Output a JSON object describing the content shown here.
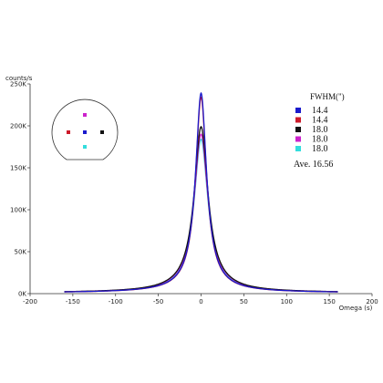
{
  "chart_data": {
    "type": "line",
    "xlabel": "Omega (s)",
    "ylabel": "counts/s",
    "xlim": [
      -200,
      200
    ],
    "ylim": [
      0,
      250000
    ],
    "x_ticks": [
      -200,
      -150,
      -100,
      -50,
      0,
      50,
      100,
      150,
      200
    ],
    "x_tick_labels": [
      "-200",
      "-150",
      "-100",
      "-50",
      "0",
      "50",
      "100",
      "150",
      "200"
    ],
    "y_ticks": [
      0,
      50000,
      100000,
      150000,
      200000,
      250000
    ],
    "y_tick_labels": [
      "0K",
      "50K",
      "100K",
      "150K",
      "200K",
      "250K"
    ],
    "grid": false,
    "legend_position": "top-right",
    "legend_title": "FWHM(\")",
    "series": [
      {
        "name": "14.4",
        "color": "#1a1acc",
        "peak": 239000,
        "fwhm": 14.4,
        "baseline": 900
      },
      {
        "name": "14.4",
        "color": "#cc1a2a",
        "peak": 234000,
        "fwhm": 14.4,
        "baseline": 900
      },
      {
        "name": "18.0",
        "color": "#111111",
        "peak": 199000,
        "fwhm": 18.0,
        "baseline": 900
      },
      {
        "name": "18.0",
        "color": "#cc22cc",
        "peak": 190000,
        "fwhm": 18.0,
        "baseline": 900
      },
      {
        "name": "18.0",
        "color": "#33dddd",
        "peak": 184000,
        "fwhm": 18.0,
        "baseline": 900
      }
    ],
    "annotation": "Ave. 16.56",
    "inset": {
      "type": "wafer-map",
      "points": [
        {
          "pos": "top",
          "color": "#cc22cc"
        },
        {
          "pos": "left",
          "color": "#cc1a2a"
        },
        {
          "pos": "center",
          "color": "#1a1acc"
        },
        {
          "pos": "right",
          "color": "#111111"
        },
        {
          "pos": "bottom",
          "color": "#33dddd"
        }
      ]
    }
  }
}
